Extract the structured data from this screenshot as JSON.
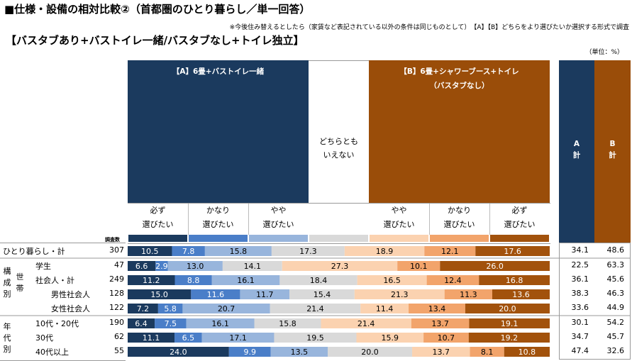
{
  "title": "■仕様・設備の相対比較②（首都圏のひとり暮らし／単一回答）",
  "note": "※今後住み替えるとしたら（家賃など表記されている以外の条件は同じものとして）　【A】【B】どちらをより選びたいか選択する形式で調査",
  "subtitle": "【バスタブあり+バストイレ一緒/バスタブなし+トイレ独立】",
  "unit": "（単位：%）",
  "header": {
    "a_label": "【A】6畳+バストイレ一緒",
    "b_label_1": "【B】6畳+シャワーブース+トイレ",
    "b_label_2": "（バスタブなし）",
    "neutral_1": "どちらとも",
    "neutral_2": "いえない",
    "a_total_1": "A",
    "a_total_2": "計",
    "b_total_1": "B",
    "b_total_2": "計",
    "n_label": "調査数",
    "cols": [
      [
        "必ず",
        "選びたい"
      ],
      [
        "かなり",
        "選びたい"
      ],
      [
        "やや",
        "選びたい"
      ],
      [
        "やや",
        "選びたい"
      ],
      [
        "かなり",
        "選びたい"
      ],
      [
        "必ず",
        "選びたい"
      ]
    ]
  },
  "groups": {
    "kousei_1": "構",
    "kousei_2": "成",
    "kousei_3": "別",
    "setai_1": "世",
    "setai_2": "帯",
    "nendai_1": "年",
    "nendai_2": "代",
    "nendai_3": "別"
  },
  "colors": {
    "a_strong": "#1b3a5e",
    "a_mid": "#4a7ec8",
    "a_light": "#98b5dc",
    "neutral": "#d9d9d9",
    "b_light": "#fbd2b0",
    "b_mid": "#f2a46b",
    "b_strong": "#a2520c",
    "a_header": "#1b3a5e",
    "b_header": "#9a4d09"
  },
  "chart_data": {
    "type": "bar",
    "stacked": true,
    "orientation": "horizontal",
    "segments": [
      "A 必ず選びたい",
      "A かなり選びたい",
      "A やや選びたい",
      "どちらともいえない",
      "B やや選びたい",
      "B かなり選びたい",
      "B 必ず選びたい"
    ],
    "rows": [
      {
        "label": "ひとり暮らし・計",
        "n": "307",
        "values": [
          10.5,
          7.8,
          15.8,
          17.3,
          18.9,
          12.1,
          17.6
        ],
        "a_total": "34.1",
        "b_total": "48.6"
      },
      {
        "label": "学生",
        "n": "47",
        "values": [
          6.6,
          2.9,
          13.0,
          14.1,
          27.3,
          10.1,
          26.0
        ],
        "a_total": "22.5",
        "b_total": "63.3"
      },
      {
        "label": "社会人・計",
        "n": "249",
        "values": [
          11.2,
          8.8,
          16.1,
          18.4,
          16.5,
          12.4,
          16.8
        ],
        "a_total": "36.1",
        "b_total": "45.6"
      },
      {
        "label": "男性社会人",
        "n": "128",
        "values": [
          15.0,
          11.6,
          11.7,
          15.4,
          21.3,
          11.3,
          13.6
        ],
        "a_total": "38.3",
        "b_total": "46.3"
      },
      {
        "label": "女性社会人",
        "n": "122",
        "values": [
          7.2,
          5.8,
          20.7,
          21.4,
          11.4,
          13.4,
          20.0
        ],
        "a_total": "33.6",
        "b_total": "44.9"
      },
      {
        "label": "10代・20代",
        "n": "190",
        "values": [
          6.4,
          7.5,
          16.1,
          15.8,
          21.4,
          13.7,
          19.1
        ],
        "a_total": "30.1",
        "b_total": "54.2"
      },
      {
        "label": "30代",
        "n": "62",
        "values": [
          11.1,
          6.5,
          17.1,
          19.5,
          15.9,
          10.7,
          19.2
        ],
        "a_total": "34.7",
        "b_total": "45.7"
      },
      {
        "label": "40代以上",
        "n": "55",
        "values": [
          24.0,
          9.9,
          13.5,
          20.0,
          13.7,
          8.1,
          10.8
        ],
        "a_total": "47.4",
        "b_total": "32.6"
      }
    ]
  }
}
